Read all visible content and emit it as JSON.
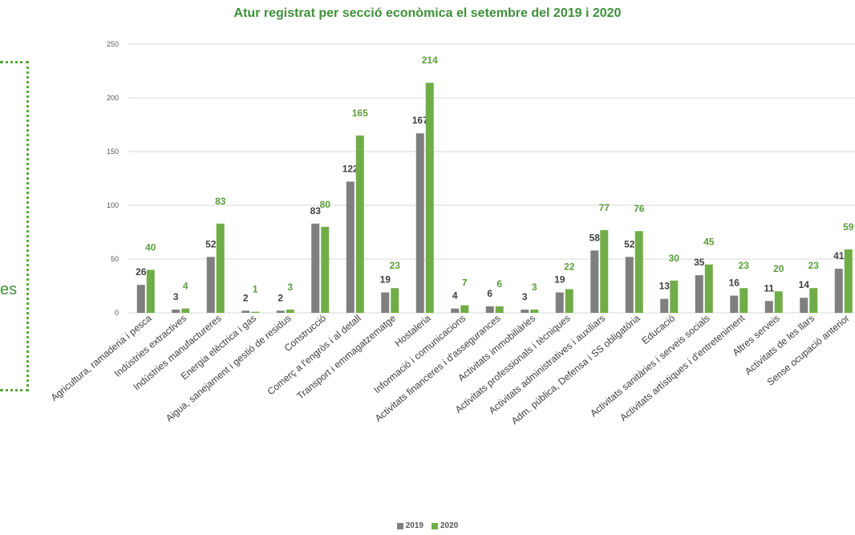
{
  "chart_data": {
    "type": "bar",
    "title": "Atur registrat per secció econòmica el setembre del 2019 i 2020",
    "xlabel": "",
    "ylabel": "",
    "ylim": [
      0,
      250
    ],
    "yticks": [
      "0",
      "50",
      "100",
      "150",
      "200",
      "250"
    ],
    "grid": true,
    "legend_position": "bottom",
    "categories": [
      "Agricultura, ramaderia i pesca",
      "Indústries extractives",
      "Indústries manufactureres",
      "Energia elèctrica i gas",
      "Aigua, sanejament i gestió de residus",
      "Construcció",
      "Comerç a l'engròs i al detall",
      "Transport i emmagatzematge",
      "Hostaleria",
      "Informació i comunicacions",
      "Activitats financeres i d'assegurances",
      "Activitats immobiliàries",
      "Activitats professionals i tècniques",
      "Activitats administratives i auxiliars",
      "Adm. pública, Defensa i SS obligatòria",
      "Educació",
      "Activitats sanitàries i serveis socials",
      "Activitats artístiques i d'entreteniment",
      "Altres serveis",
      "Activitats de les llars",
      "Sense ocupació anterior"
    ],
    "series": [
      {
        "name": "2019",
        "color": "#7f7f7f",
        "values": [
          26,
          3,
          52,
          2,
          2,
          83,
          122,
          19,
          167,
          4,
          6,
          3,
          19,
          58,
          52,
          13,
          35,
          16,
          11,
          14,
          41
        ]
      },
      {
        "name": "2020",
        "color": "#70ad47",
        "values": [
          40,
          4,
          83,
          1,
          3,
          80,
          165,
          23,
          214,
          7,
          6,
          3,
          22,
          77,
          76,
          30,
          45,
          23,
          20,
          23,
          59
        ]
      }
    ]
  },
  "side_fragment": {
    "text": "es"
  }
}
